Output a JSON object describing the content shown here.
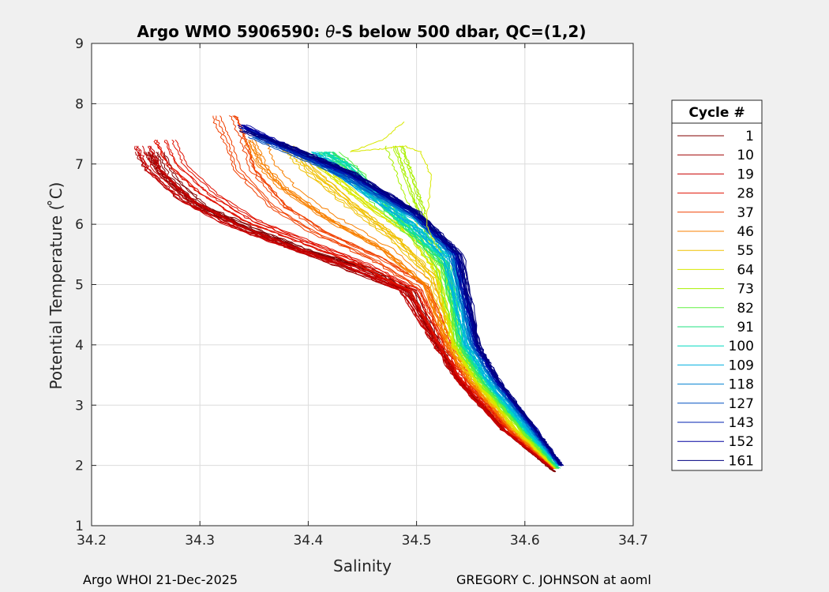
{
  "footer": {
    "left": "Argo WHOI 21-Dec-2025",
    "right": "GREGORY C. JOHNSON at aoml"
  },
  "chart_data": {
    "type": "line",
    "title_prefix": "Argo WMO 5906590: ",
    "title_theta": "θ",
    "title_suffix": "-S below 500 dbar,  QC=(1,2)",
    "xlabel": "Salinity",
    "ylabel": "Potential Temperature ( ̊C)",
    "xlim": [
      34.2,
      34.7
    ],
    "ylim": [
      1,
      9
    ],
    "xticks": [
      "34.2",
      "34.3",
      "34.4",
      "34.5",
      "34.6",
      "34.7"
    ],
    "yticks": [
      "1",
      "2",
      "3",
      "4",
      "5",
      "6",
      "7",
      "8",
      "9"
    ],
    "grid": true,
    "legend_title": "Cycle #",
    "legend_position": "outside-right",
    "legend": [
      {
        "label": "1",
        "color": "#800000"
      },
      {
        "label": "10",
        "color": "#a00000"
      },
      {
        "label": "19",
        "color": "#c80000"
      },
      {
        "label": "28",
        "color": "#e01000"
      },
      {
        "label": "37",
        "color": "#f04000"
      },
      {
        "label": "46",
        "color": "#f88000"
      },
      {
        "label": "55",
        "color": "#f0c000"
      },
      {
        "label": "64",
        "color": "#d8e800"
      },
      {
        "label": "73",
        "color": "#a8f000"
      },
      {
        "label": "82",
        "color": "#60f040"
      },
      {
        "label": "91",
        "color": "#20e080"
      },
      {
        "label": "100",
        "color": "#00d8c0"
      },
      {
        "label": "109",
        "color": "#00b0e0"
      },
      {
        "label": "118",
        "color": "#0080d0"
      },
      {
        "label": "127",
        "color": "#0050c0"
      },
      {
        "label": "143",
        "color": "#0020b0"
      },
      {
        "label": "152",
        "color": "#0000a0"
      },
      {
        "label": "161",
        "color": "#000080"
      }
    ],
    "series_groups": [
      {
        "cycle": "1",
        "color": "#800000",
        "spread": 0.008,
        "points": [
          [
            34.627,
            1.9
          ],
          [
            34.58,
            2.6
          ],
          [
            34.54,
            3.4
          ],
          [
            34.52,
            4.0
          ],
          [
            34.495,
            4.9
          ],
          [
            34.45,
            5.3
          ],
          [
            34.4,
            5.55
          ],
          [
            34.35,
            5.9
          ],
          [
            34.3,
            6.3
          ],
          [
            34.27,
            6.8
          ],
          [
            34.26,
            7.2
          ]
        ]
      },
      {
        "cycle": "10",
        "color": "#a00000",
        "spread": 0.01,
        "points": [
          [
            34.625,
            1.95
          ],
          [
            34.58,
            2.6
          ],
          [
            34.54,
            3.4
          ],
          [
            34.52,
            4.0
          ],
          [
            34.49,
            4.9
          ],
          [
            34.44,
            5.25
          ],
          [
            34.39,
            5.6
          ],
          [
            34.34,
            5.95
          ],
          [
            34.29,
            6.4
          ],
          [
            34.26,
            6.9
          ],
          [
            34.25,
            7.2
          ]
        ]
      },
      {
        "cycle": "19",
        "color": "#c80000",
        "spread": 0.012,
        "points": [
          [
            34.626,
            1.95
          ],
          [
            34.58,
            2.6
          ],
          [
            34.54,
            3.4
          ],
          [
            34.52,
            4.0
          ],
          [
            34.49,
            4.9
          ],
          [
            34.44,
            5.3
          ],
          [
            34.38,
            5.65
          ],
          [
            34.33,
            6.0
          ],
          [
            34.29,
            6.4
          ],
          [
            34.26,
            6.9
          ],
          [
            34.25,
            7.3
          ]
        ]
      },
      {
        "cycle": "28",
        "color": "#e01000",
        "spread": 0.012,
        "points": [
          [
            34.627,
            1.95
          ],
          [
            34.585,
            2.6
          ],
          [
            34.545,
            3.4
          ],
          [
            34.525,
            4.0
          ],
          [
            34.5,
            4.9
          ],
          [
            34.45,
            5.35
          ],
          [
            34.4,
            5.7
          ],
          [
            34.35,
            6.05
          ],
          [
            34.31,
            6.5
          ],
          [
            34.28,
            7.0
          ],
          [
            34.27,
            7.4
          ]
        ]
      },
      {
        "cycle": "37",
        "color": "#f04000",
        "spread": 0.012,
        "points": [
          [
            34.628,
            1.95
          ],
          [
            34.585,
            2.6
          ],
          [
            34.548,
            3.4
          ],
          [
            34.528,
            4.0
          ],
          [
            34.505,
            4.95
          ],
          [
            34.46,
            5.45
          ],
          [
            34.41,
            5.85
          ],
          [
            34.37,
            6.3
          ],
          [
            34.34,
            6.9
          ],
          [
            34.33,
            7.4
          ],
          [
            34.32,
            7.8
          ]
        ]
      },
      {
        "cycle": "46",
        "color": "#f88000",
        "spread": 0.011,
        "points": [
          [
            34.628,
            1.95
          ],
          [
            34.588,
            2.6
          ],
          [
            34.55,
            3.4
          ],
          [
            34.53,
            4.0
          ],
          [
            34.51,
            5.0
          ],
          [
            34.47,
            5.6
          ],
          [
            34.42,
            6.1
          ],
          [
            34.38,
            6.6
          ],
          [
            34.36,
            7.0
          ],
          [
            34.35,
            7.4
          ]
        ]
      },
      {
        "cycle": "55",
        "color": "#f0c000",
        "spread": 0.01,
        "points": [
          [
            34.629,
            1.95
          ],
          [
            34.59,
            2.6
          ],
          [
            34.553,
            3.4
          ],
          [
            34.533,
            4.0
          ],
          [
            34.515,
            5.1
          ],
          [
            34.48,
            5.75
          ],
          [
            34.44,
            6.3
          ],
          [
            34.4,
            6.9
          ],
          [
            34.38,
            7.3
          ]
        ]
      },
      {
        "cycle": "64",
        "color": "#d8e800",
        "spread": 0.01,
        "points": [
          [
            34.629,
            1.95
          ],
          [
            34.592,
            2.6
          ],
          [
            34.556,
            3.4
          ],
          [
            34.536,
            4.0
          ],
          [
            34.522,
            5.2
          ],
          [
            34.5,
            5.8
          ],
          [
            34.46,
            6.3
          ],
          [
            34.42,
            6.9
          ],
          [
            34.4,
            7.2
          ]
        ]
      },
      {
        "cycle": "73",
        "color": "#a8f000",
        "spread": 0.008,
        "points": [
          [
            34.63,
            1.95
          ],
          [
            34.595,
            2.6
          ],
          [
            34.558,
            3.4
          ],
          [
            34.538,
            4.0
          ],
          [
            34.525,
            5.3
          ],
          [
            34.51,
            5.8
          ],
          [
            34.5,
            6.3
          ],
          [
            34.49,
            6.8
          ],
          [
            34.48,
            7.3
          ]
        ]
      },
      {
        "cycle": "82",
        "color": "#60f040",
        "spread": 0.01,
        "points": [
          [
            34.63,
            1.95
          ],
          [
            34.597,
            2.6
          ],
          [
            34.56,
            3.4
          ],
          [
            34.54,
            4.0
          ],
          [
            34.525,
            5.3
          ],
          [
            34.5,
            5.8
          ],
          [
            34.47,
            6.3
          ],
          [
            34.44,
            6.9
          ],
          [
            34.42,
            7.2
          ]
        ]
      },
      {
        "cycle": "91",
        "color": "#20e080",
        "spread": 0.01,
        "points": [
          [
            34.631,
            1.95
          ],
          [
            34.6,
            2.6
          ],
          [
            34.563,
            3.4
          ],
          [
            34.543,
            4.0
          ],
          [
            34.528,
            5.35
          ],
          [
            34.5,
            5.85
          ],
          [
            34.47,
            6.4
          ],
          [
            34.44,
            6.95
          ],
          [
            34.42,
            7.2
          ]
        ]
      },
      {
        "cycle": "100",
        "color": "#00d8c0",
        "spread": 0.009,
        "points": [
          [
            34.631,
            2.0
          ],
          [
            34.6,
            2.6
          ],
          [
            34.565,
            3.4
          ],
          [
            34.545,
            4.0
          ],
          [
            34.53,
            5.4
          ],
          [
            34.5,
            5.9
          ],
          [
            34.46,
            6.5
          ],
          [
            34.43,
            7.0
          ],
          [
            34.41,
            7.2
          ]
        ]
      },
      {
        "cycle": "109",
        "color": "#00b0e0",
        "spread": 0.008,
        "points": [
          [
            34.632,
            2.0
          ],
          [
            34.603,
            2.6
          ],
          [
            34.567,
            3.4
          ],
          [
            34.548,
            4.0
          ],
          [
            34.53,
            5.45
          ],
          [
            34.5,
            6.0
          ],
          [
            34.45,
            6.6
          ],
          [
            34.42,
            7.0
          ],
          [
            34.4,
            7.2
          ]
        ]
      },
      {
        "cycle": "118",
        "color": "#0080d0",
        "spread": 0.007,
        "points": [
          [
            34.632,
            2.0
          ],
          [
            34.605,
            2.6
          ],
          [
            34.57,
            3.4
          ],
          [
            34.55,
            4.0
          ],
          [
            34.532,
            5.5
          ],
          [
            34.5,
            6.1
          ],
          [
            34.44,
            6.7
          ],
          [
            34.4,
            7.1
          ],
          [
            34.37,
            7.35
          ]
        ]
      },
      {
        "cycle": "127",
        "color": "#0050c0",
        "spread": 0.007,
        "points": [
          [
            34.633,
            2.0
          ],
          [
            34.607,
            2.6
          ],
          [
            34.572,
            3.4
          ],
          [
            34.553,
            4.0
          ],
          [
            34.535,
            5.5
          ],
          [
            34.5,
            6.15
          ],
          [
            34.44,
            6.75
          ],
          [
            34.39,
            7.15
          ],
          [
            34.35,
            7.45
          ]
        ]
      },
      {
        "cycle": "143",
        "color": "#0020b0",
        "spread": 0.006,
        "points": [
          [
            34.633,
            2.0
          ],
          [
            34.608,
            2.6
          ],
          [
            34.574,
            3.4
          ],
          [
            34.555,
            4.0
          ],
          [
            34.537,
            5.5
          ],
          [
            34.5,
            6.15
          ],
          [
            34.44,
            6.8
          ],
          [
            34.38,
            7.25
          ],
          [
            34.34,
            7.6
          ]
        ]
      },
      {
        "cycle": "152",
        "color": "#0000a0",
        "spread": 0.006,
        "points": [
          [
            34.634,
            2.0
          ],
          [
            34.61,
            2.6
          ],
          [
            34.575,
            3.4
          ],
          [
            34.556,
            4.0
          ],
          [
            34.538,
            5.5
          ],
          [
            34.5,
            6.2
          ],
          [
            34.44,
            6.85
          ],
          [
            34.38,
            7.3
          ],
          [
            34.34,
            7.65
          ]
        ]
      },
      {
        "cycle": "161",
        "color": "#000080",
        "spread": 0.005,
        "points": [
          [
            34.634,
            2.0
          ],
          [
            34.61,
            2.6
          ],
          [
            34.576,
            3.4
          ],
          [
            34.557,
            4.0
          ],
          [
            34.54,
            5.5
          ],
          [
            34.5,
            6.2
          ],
          [
            34.44,
            6.85
          ],
          [
            34.38,
            7.3
          ],
          [
            34.34,
            7.55
          ]
        ]
      }
    ],
    "annotations": [
      {
        "cycle": "64",
        "color": "#d8e800",
        "note_points": [
          [
            34.52,
            5.6
          ],
          [
            34.51,
            6.0
          ],
          [
            34.515,
            6.8
          ],
          [
            34.505,
            7.2
          ],
          [
            34.49,
            7.3
          ],
          [
            34.47,
            7.25
          ],
          [
            34.44,
            7.2
          ],
          [
            34.47,
            7.4
          ],
          [
            34.49,
            7.7
          ]
        ]
      }
    ]
  }
}
